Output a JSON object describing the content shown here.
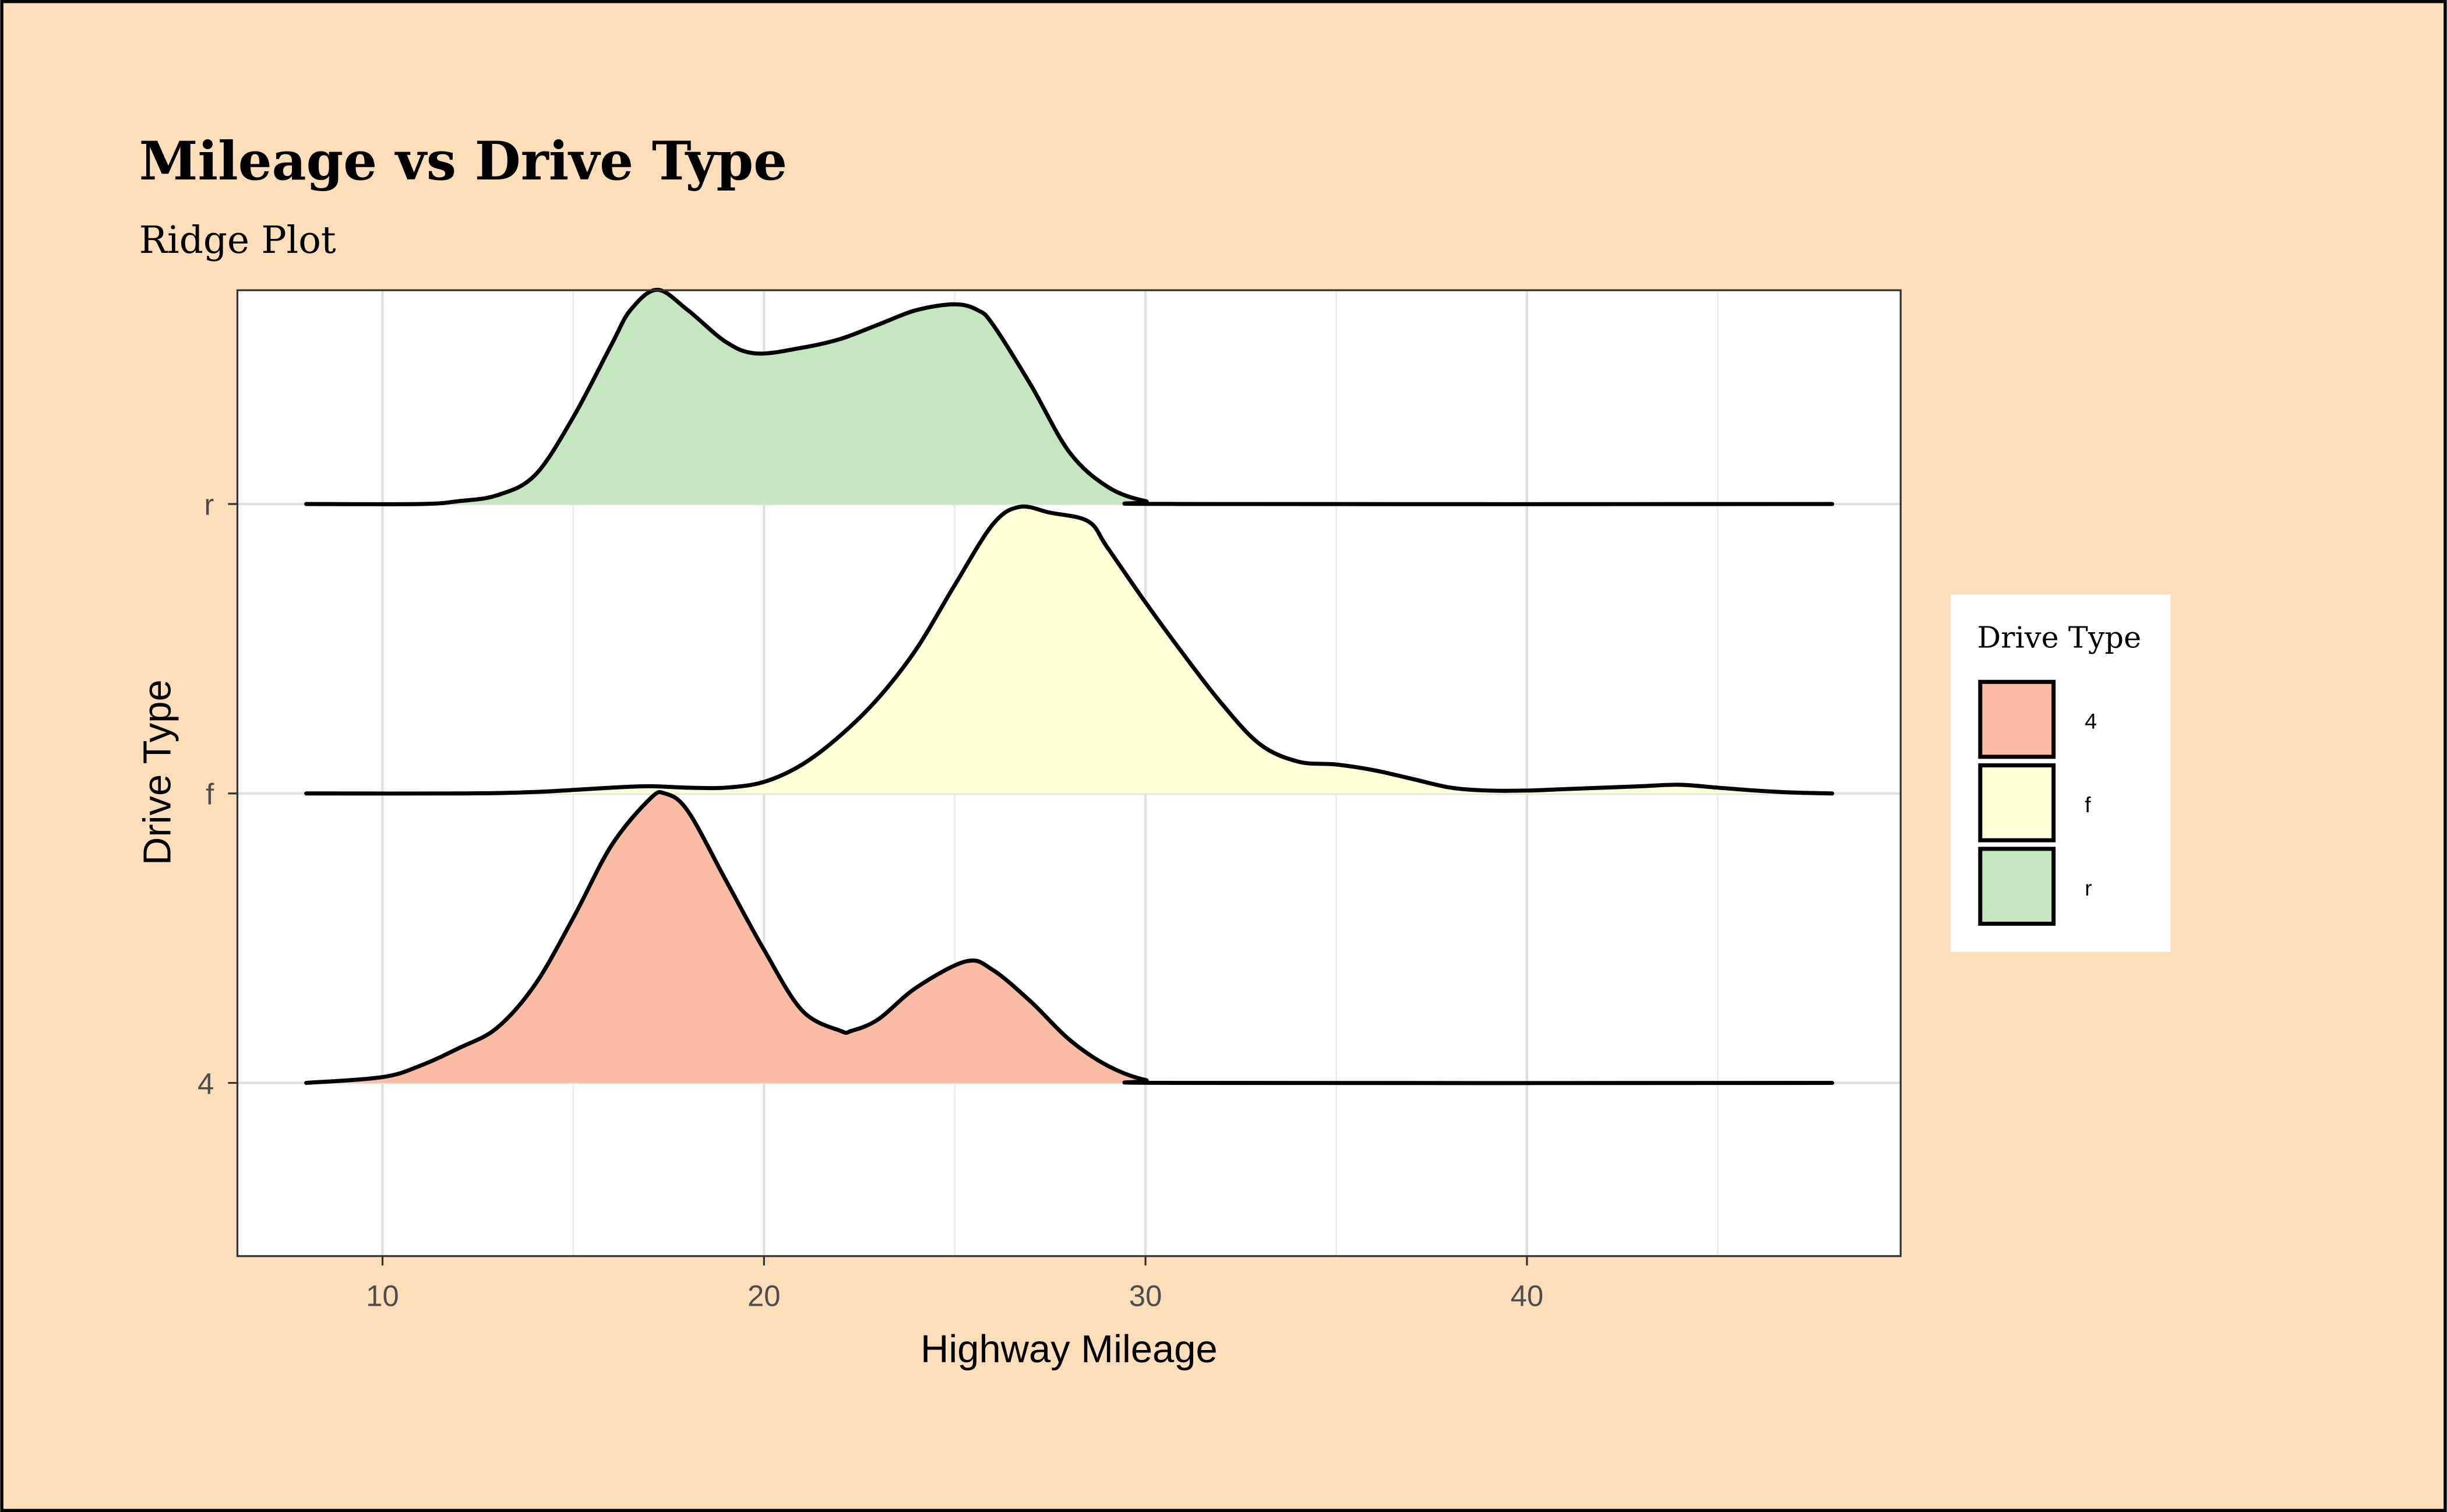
{
  "chart_data": {
    "type": "ridgeline",
    "title": "Mileage vs Drive Type",
    "subtitle": "Ridge Plot",
    "xlabel": "Highway Mileage",
    "ylabel": "Drive Type",
    "xlim": [
      6.2,
      49.8
    ],
    "x_ticks": [
      "10",
      "20",
      "30",
      "40"
    ],
    "x_tick_values": [
      10,
      20,
      30,
      40
    ],
    "y_categories": [
      "4",
      "f",
      "r"
    ],
    "grid": true,
    "legend": {
      "title": "Drive Type",
      "position": "right",
      "entries": [
        "4",
        "f",
        "r"
      ]
    },
    "series": [
      {
        "name": "4",
        "color": "#FBBCA5",
        "x": [
          8,
          10,
          11,
          12,
          13,
          14,
          15,
          16,
          17,
          17.4,
          18,
          19,
          20,
          21,
          22,
          22.3,
          23,
          24,
          25.3,
          26,
          27,
          28,
          29,
          30,
          31,
          48
        ],
        "height": [
          0,
          0.02,
          0.06,
          0.12,
          0.19,
          0.34,
          0.57,
          0.82,
          0.98,
          1.0,
          0.94,
          0.7,
          0.46,
          0.25,
          0.18,
          0.18,
          0.22,
          0.33,
          0.42,
          0.39,
          0.28,
          0.15,
          0.06,
          0.01,
          0,
          0
        ]
      },
      {
        "name": "f",
        "color": "#FFFFD8",
        "x": [
          8,
          12,
          14,
          16,
          17,
          18,
          19,
          20,
          21,
          22,
          23,
          24,
          25,
          26,
          26.7,
          27.5,
          28.5,
          29,
          30,
          31,
          32,
          33,
          34,
          35,
          36,
          37,
          38,
          39,
          40,
          41,
          42,
          43,
          44,
          45,
          46,
          47,
          48
        ],
        "height": [
          0,
          0,
          0.005,
          0.02,
          0.025,
          0.02,
          0.02,
          0.04,
          0.1,
          0.2,
          0.33,
          0.5,
          0.72,
          0.93,
          0.99,
          0.97,
          0.94,
          0.85,
          0.66,
          0.48,
          0.31,
          0.17,
          0.11,
          0.1,
          0.08,
          0.05,
          0.02,
          0.01,
          0.01,
          0.015,
          0.02,
          0.025,
          0.03,
          0.02,
          0.01,
          0.003,
          0
        ]
      },
      {
        "name": "r",
        "color": "#C6E6C2",
        "x": [
          8,
          11,
          12,
          13,
          14,
          15,
          16,
          16.5,
          17.2,
          18,
          19,
          19.8,
          21,
          22,
          23,
          24,
          25,
          25.6,
          26,
          27,
          28,
          29,
          30,
          31,
          48
        ],
        "height": [
          0,
          0,
          0.01,
          0.03,
          0.1,
          0.3,
          0.55,
          0.67,
          0.74,
          0.67,
          0.56,
          0.52,
          0.54,
          0.57,
          0.62,
          0.67,
          0.69,
          0.67,
          0.62,
          0.41,
          0.18,
          0.06,
          0.01,
          0,
          0
        ]
      }
    ]
  }
}
